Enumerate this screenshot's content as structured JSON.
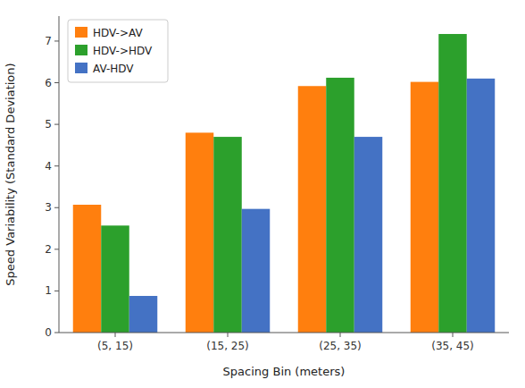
{
  "chart_data": {
    "type": "bar",
    "categories": [
      "(5, 15)",
      "(15, 25)",
      "(25, 35)",
      "(35, 45)"
    ],
    "series": [
      {
        "name": "HDV->AV",
        "color": "#FF7F0E",
        "values": [
          3.07,
          4.8,
          5.92,
          6.02
        ]
      },
      {
        "name": "HDV->HDV",
        "color": "#2CA02C",
        "values": [
          2.57,
          4.7,
          6.12,
          7.17
        ]
      },
      {
        "name": "AV-HDV",
        "color": "#4472C4",
        "values": [
          0.88,
          2.97,
          4.7,
          6.1
        ]
      }
    ],
    "xlabel": "Spacing Bin (meters)",
    "ylabel": "Speed Variability (Standard Deviation)",
    "ylim": [
      0,
      7.6
    ],
    "yticks": [
      0,
      1,
      2,
      3,
      4,
      5,
      6,
      7
    ],
    "legend": "upper left",
    "grid": false
  }
}
